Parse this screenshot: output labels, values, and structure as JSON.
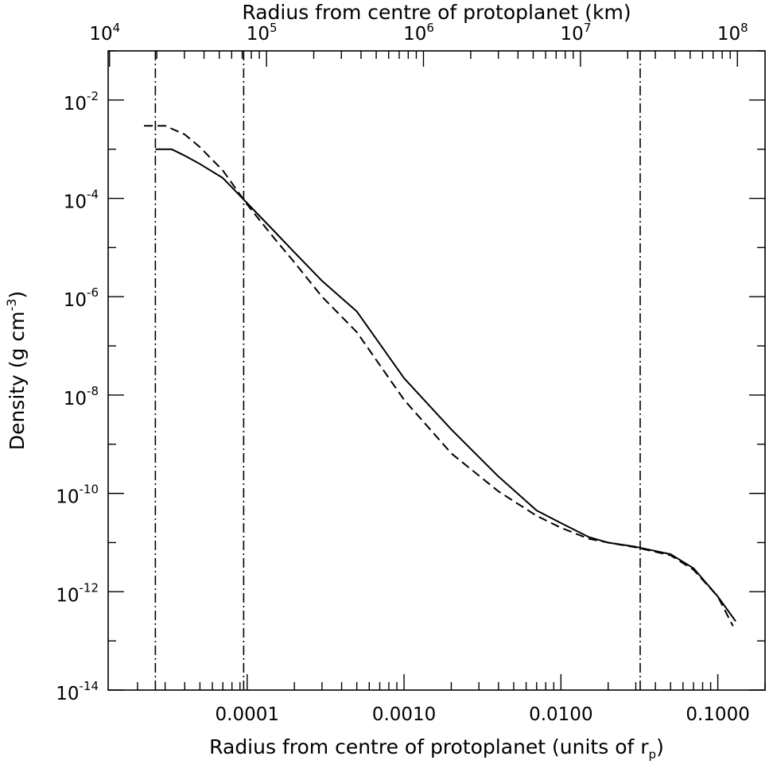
{
  "chart_data": {
    "type": "line",
    "xlabel_bottom": "Radius from centre of protoplanet (units of r",
    "xlabel_bottom_sub": "p",
    "xlabel_bottom_close": ")",
    "xlabel_top": "Radius from centre of protoplanet (km)",
    "ylabel": "Density (g cm",
    "ylabel_sup": "-3",
    "ylabel_close": ")",
    "x_scale": "log",
    "y_scale": "log",
    "xlim": [
      1.3e-05,
      0.2
    ],
    "ylim": [
      1e-14,
      0.1
    ],
    "grid": false,
    "x_ticks": [
      {
        "value": 0.0001,
        "label": "0.0001"
      },
      {
        "value": 0.001,
        "label": "0.0010"
      },
      {
        "value": 0.01,
        "label": "0.0100"
      },
      {
        "value": 0.1,
        "label": "0.1000"
      }
    ],
    "top_ticks": [
      {
        "value": 10000,
        "base": "10",
        "exp": "4"
      },
      {
        "value": 100000,
        "base": "10",
        "exp": "5"
      },
      {
        "value": 1000000,
        "base": "10",
        "exp": "6"
      },
      {
        "value": 10000000,
        "base": "10",
        "exp": "7"
      },
      {
        "value": 100000000,
        "base": "10",
        "exp": "8"
      }
    ],
    "top_axis_range_km": [
      9800,
      150000000
    ],
    "y_ticks": [
      {
        "value": 0.01,
        "base": "10",
        "exp": "-2"
      },
      {
        "value": 0.0001,
        "base": "10",
        "exp": "-4"
      },
      {
        "value": 1e-06,
        "base": "10",
        "exp": "-6"
      },
      {
        "value": 1e-08,
        "base": "10",
        "exp": "-8"
      },
      {
        "value": 1e-10,
        "base": "10",
        "exp": "-10"
      },
      {
        "value": 1e-12,
        "base": "10",
        "exp": "-12"
      },
      {
        "value": 1e-14,
        "base": "10",
        "exp": "-14"
      }
    ],
    "vertical_lines": [
      2.6e-05,
      9.5e-05,
      0.032
    ],
    "series": [
      {
        "style": "solid",
        "points": [
          [
            2.6e-05,
            0.001
          ],
          [
            3.3e-05,
            0.001
          ],
          [
            4e-05,
            0.00074
          ],
          [
            5e-05,
            0.0005
          ],
          [
            7e-05,
            0.00026
          ],
          [
            0.0001,
            8e-05
          ],
          [
            0.00015,
            2.1e-05
          ],
          [
            0.0002,
            8e-06
          ],
          [
            0.0003,
            2.1e-06
          ],
          [
            0.0005,
            5e-07
          ],
          [
            0.001,
            2.2e-08
          ],
          [
            0.002,
            2e-09
          ],
          [
            0.004,
            2.2e-10
          ],
          [
            0.007,
            4.5e-11
          ],
          [
            0.01,
            2.5e-11
          ],
          [
            0.015,
            1.3e-11
          ],
          [
            0.02,
            1e-11
          ],
          [
            0.03,
            8.2e-12
          ],
          [
            0.05,
            5.8e-12
          ],
          [
            0.07,
            3e-12
          ],
          [
            0.1,
            8e-13
          ],
          [
            0.13,
            2.5e-13
          ]
        ]
      },
      {
        "style": "dashed",
        "points": [
          [
            2.2e-05,
            0.003
          ],
          [
            3e-05,
            0.003
          ],
          [
            4e-05,
            0.002
          ],
          [
            5e-05,
            0.0011
          ],
          [
            7e-05,
            0.00037
          ],
          [
            0.0001,
            7.5e-05
          ],
          [
            0.00015,
            1.5e-05
          ],
          [
            0.0002,
            5e-06
          ],
          [
            0.0003,
            1e-06
          ],
          [
            0.0005,
            1.9e-07
          ],
          [
            0.001,
            8e-09
          ],
          [
            0.002,
            6.5e-10
          ],
          [
            0.004,
            1.1e-10
          ],
          [
            0.007,
            3.5e-11
          ],
          [
            0.01,
            2e-11
          ],
          [
            0.015,
            1.2e-11
          ],
          [
            0.02,
            1e-11
          ],
          [
            0.03,
            8e-12
          ],
          [
            0.05,
            5.5e-12
          ],
          [
            0.07,
            2.8e-12
          ],
          [
            0.1,
            8e-13
          ],
          [
            0.125,
            2e-13
          ]
        ]
      }
    ]
  }
}
